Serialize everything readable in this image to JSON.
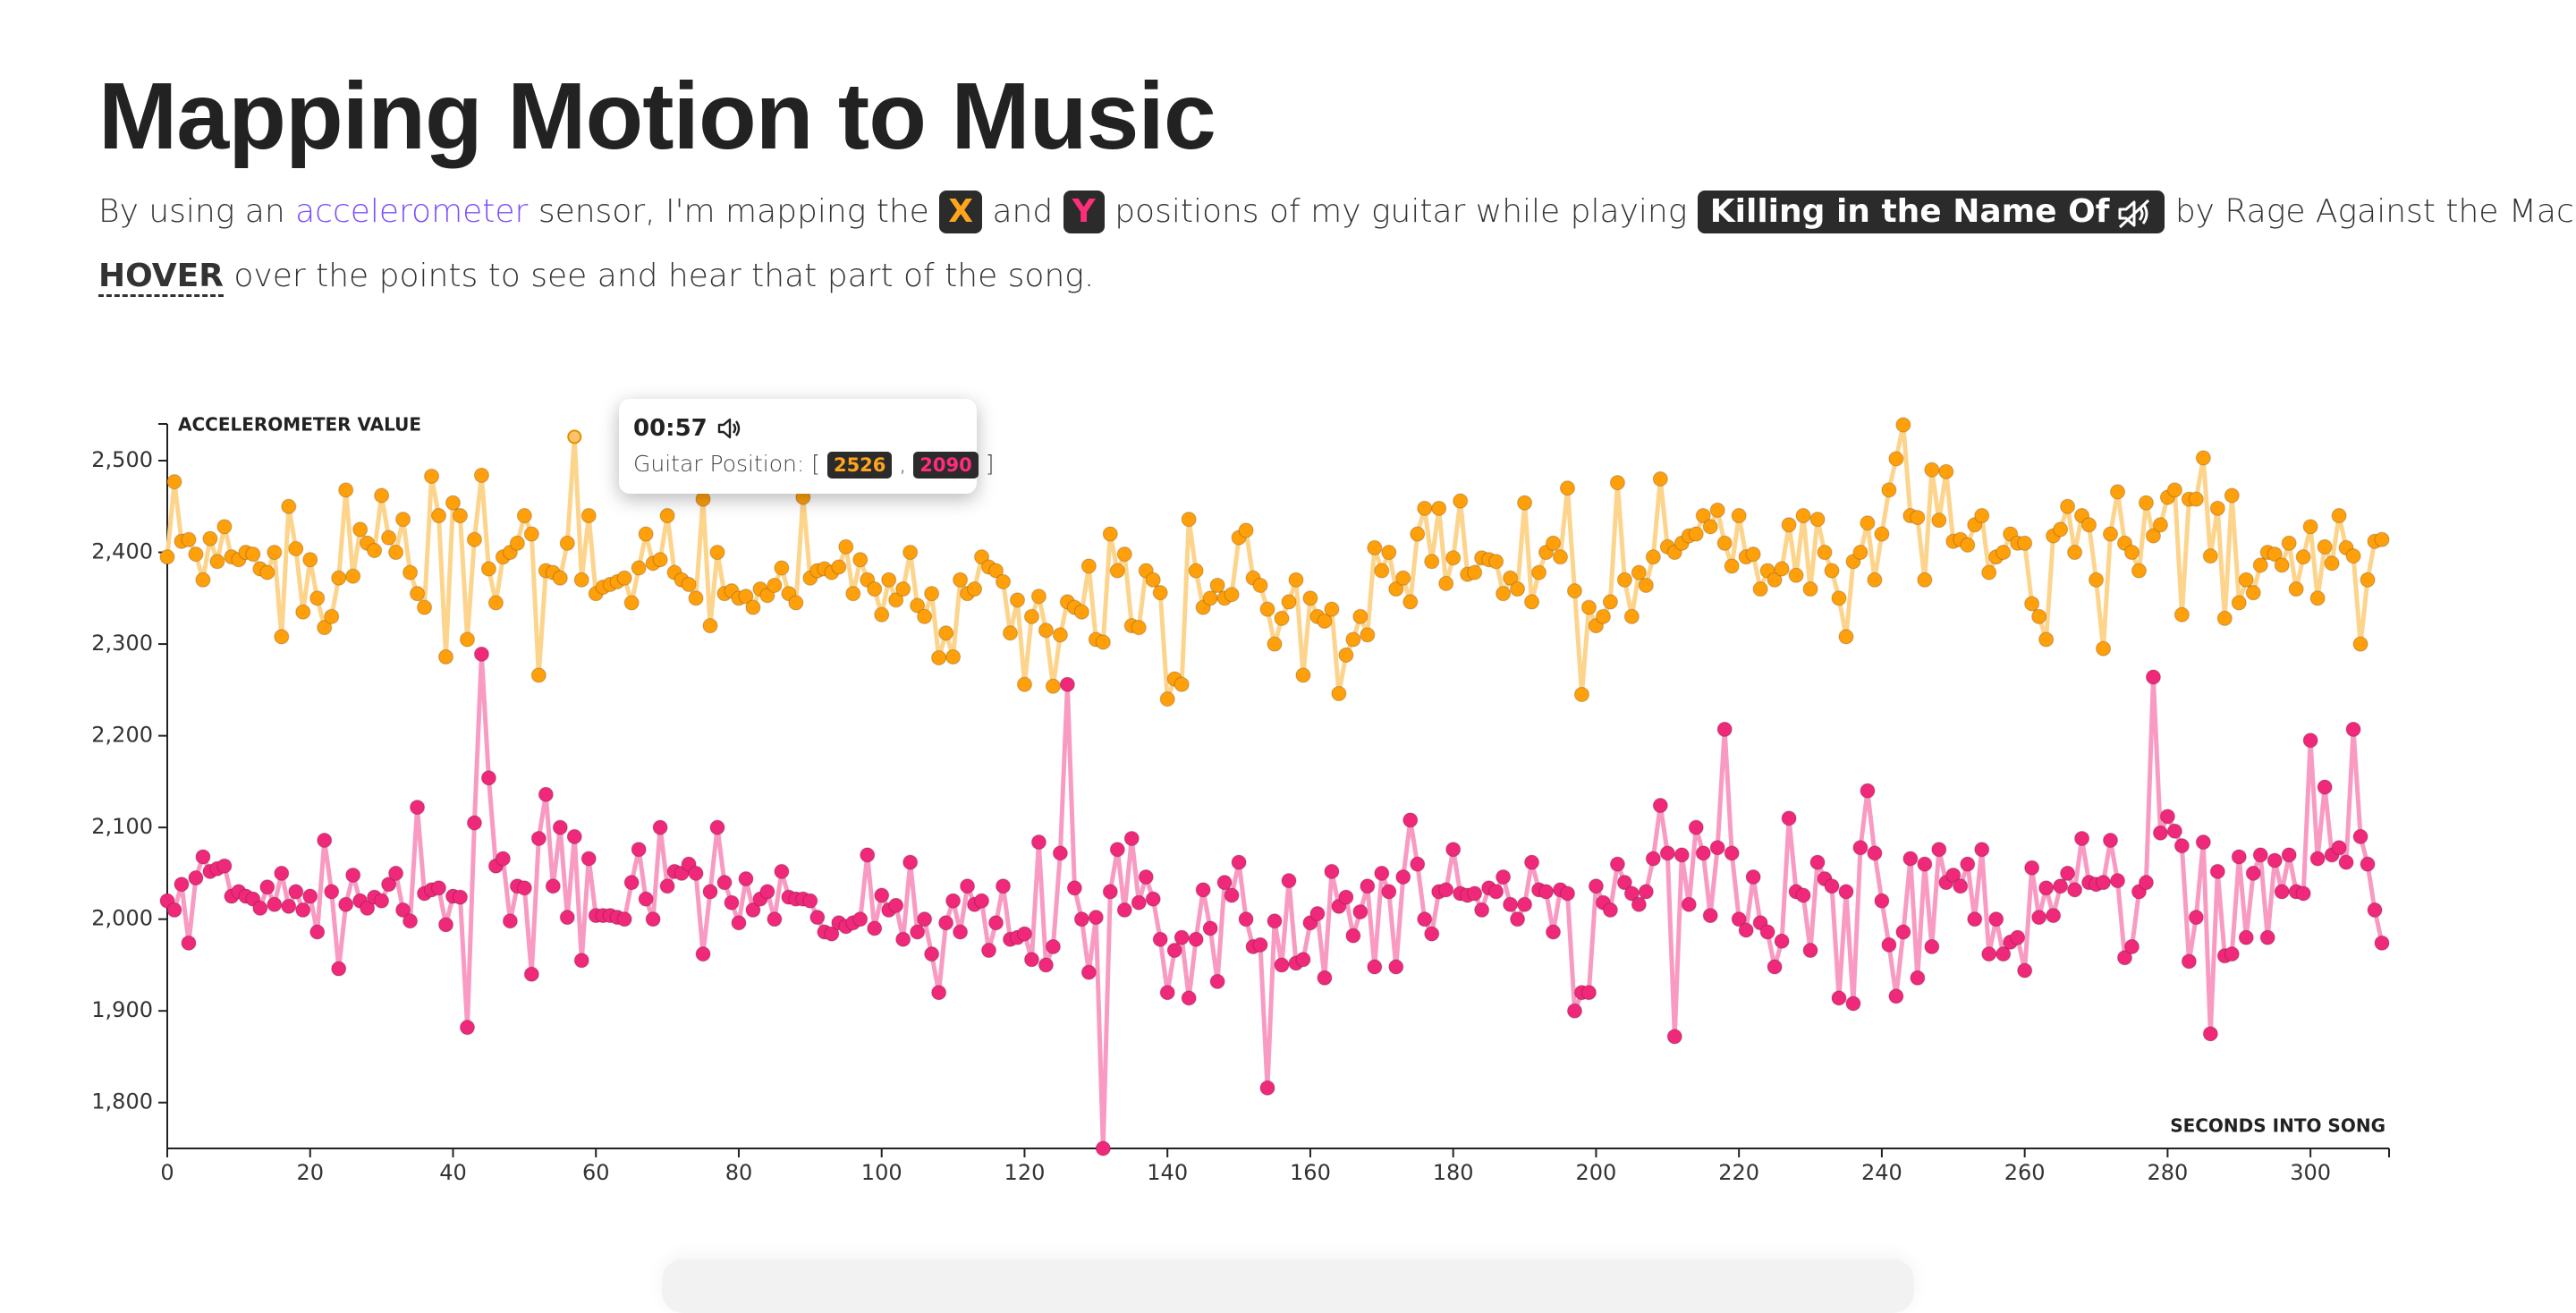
{
  "header": {
    "title": "Mapping Motion to Music",
    "intro": [
      "By using an",
      "accelerometer",
      "sensor, I'm mapping the",
      "and",
      "positions of my guitar while playing",
      "Killing in the Name Of",
      "by Rage Against the Machine."
    ],
    "hint": [
      "HOVER",
      "over the points to see and hear that part of the song."
    ]
  },
  "tooltip": {
    "time": "00:57",
    "label": "Guitar Position:",
    "open": "[",
    "sep": ",",
    "close": "]",
    "index": 57
  },
  "chart_data": {
    "type": "scatter-line",
    "y_label": "ACCELEROMETER VALUE",
    "x_label": "SECONDS INTO SONG",
    "xlim": [
      0,
      311
    ],
    "ylim": [
      1750,
      2540
    ],
    "xticks": [
      0,
      20,
      40,
      60,
      80,
      100,
      120,
      140,
      160,
      180,
      200,
      220,
      240,
      260,
      280,
      300
    ],
    "yticks": [
      {
        "value": 1800,
        "label": "1,800"
      },
      {
        "value": 1900,
        "label": "1,900"
      },
      {
        "value": 2000,
        "label": "2,000"
      },
      {
        "value": 2100,
        "label": "2,100"
      },
      {
        "value": 2200,
        "label": "2,200"
      },
      {
        "value": 2300,
        "label": "2,300"
      },
      {
        "value": 2400,
        "label": "2,400"
      },
      {
        "value": 2500,
        "label": "2,500"
      }
    ],
    "x": [
      0,
      1,
      2,
      3,
      4,
      5,
      6,
      7,
      8,
      9,
      10,
      11,
      12,
      13,
      14,
      15,
      16,
      17,
      18,
      19,
      20,
      21,
      22,
      23,
      24,
      25,
      26,
      27,
      28,
      29,
      30,
      31,
      32,
      33,
      34,
      35,
      36,
      37,
      38,
      39,
      40,
      41,
      42,
      43,
      44,
      45,
      46,
      47,
      48,
      49,
      50,
      51,
      52,
      53,
      54,
      55,
      56,
      57,
      58,
      59,
      60,
      61,
      62,
      63,
      64,
      65,
      66,
      67,
      68,
      69,
      70,
      71,
      72,
      73,
      74,
      75,
      76,
      77,
      78,
      79,
      80,
      81,
      82,
      83,
      84,
      85,
      86,
      87,
      88,
      89,
      90,
      91,
      92,
      93,
      94,
      95,
      96,
      97,
      98,
      99,
      100,
      101,
      102,
      103,
      104,
      105,
      106,
      107,
      108,
      109,
      110,
      111,
      112,
      113,
      114,
      115,
      116,
      117,
      118,
      119,
      120,
      121,
      122,
      123,
      124,
      125,
      126,
      127,
      128,
      129,
      130,
      131,
      132,
      133,
      134,
      135,
      136,
      137,
      138,
      139,
      140,
      141,
      142,
      143,
      144,
      145,
      146,
      147,
      148,
      149,
      150,
      151,
      152,
      153,
      154,
      155,
      156,
      157,
      158,
      159,
      160,
      161,
      162,
      163,
      164,
      165,
      166,
      167,
      168,
      169,
      170,
      171,
      172,
      173,
      174,
      175,
      176,
      177,
      178,
      179,
      180,
      181,
      182,
      183,
      184,
      185,
      186,
      187,
      188,
      189,
      190,
      191,
      192,
      193,
      194,
      195,
      196,
      197,
      198,
      199,
      200,
      201,
      202,
      203,
      204,
      205,
      206,
      207,
      208,
      209,
      210,
      211,
      212,
      213,
      214,
      215,
      216,
      217,
      218,
      219,
      220,
      221,
      222,
      223,
      224,
      225,
      226,
      227,
      228,
      229,
      230,
      231,
      232,
      233,
      234,
      235,
      236,
      237,
      238,
      239,
      240,
      241,
      242,
      243,
      244,
      245,
      246,
      247,
      248,
      249,
      250,
      251,
      252,
      253,
      254,
      255,
      256,
      257,
      258,
      259,
      260,
      261,
      262,
      263,
      264,
      265,
      266,
      267,
      268,
      269,
      270,
      271,
      272,
      273,
      274,
      275,
      276,
      277,
      278,
      279,
      280,
      281,
      282,
      283,
      284,
      285,
      286,
      287,
      288,
      289,
      290,
      291,
      292,
      293,
      294,
      295,
      296,
      297,
      298,
      299,
      300,
      301,
      302,
      303,
      304,
      305,
      306,
      307,
      308,
      309,
      310
    ],
    "series": [
      {
        "name": "X",
        "color": "#ff9f0a",
        "line_color": "#fdd48c",
        "values": [
          2395,
          2477,
          2412,
          2414,
          2398,
          2370,
          2415,
          2390,
          2428,
          2395,
          2392,
          2400,
          2398,
          2382,
          2378,
          2400,
          2308,
          2450,
          2404,
          2335,
          2392,
          2350,
          2318,
          2330,
          2372,
          2468,
          2374,
          2425,
          2410,
          2402,
          2462,
          2416,
          2400,
          2436,
          2378,
          2355,
          2340,
          2483,
          2440,
          2286,
          2454,
          2440,
          2305,
          2414,
          2484,
          2382,
          2345,
          2395,
          2400,
          2410,
          2440,
          2420,
          2266,
          2380,
          2378,
          2372,
          2410,
          2526,
          2370,
          2440,
          2355,
          2362,
          2365,
          2368,
          2372,
          2345,
          2383,
          2420,
          2388,
          2392,
          2440,
          2378,
          2370,
          2365,
          2350,
          2458,
          2320,
          2400,
          2355,
          2358,
          2350,
          2352,
          2340,
          2360,
          2353,
          2364,
          2383,
          2355,
          2345,
          2460,
          2372,
          2380,
          2382,
          2378,
          2384,
          2406,
          2355,
          2392,
          2370,
          2360,
          2332,
          2370,
          2348,
          2360,
          2400,
          2342,
          2330,
          2355,
          2285,
          2312,
          2286,
          2370,
          2355,
          2360,
          2395,
          2384,
          2380,
          2368,
          2312,
          2348,
          2256,
          2330,
          2352,
          2315,
          2254,
          2310,
          2346,
          2340,
          2335,
          2385,
          2305,
          2302,
          2420,
          2380,
          2398,
          2320,
          2318,
          2380,
          2370,
          2356,
          2240,
          2262,
          2256,
          2436,
          2380,
          2340,
          2350,
          2364,
          2350,
          2354,
          2416,
          2424,
          2372,
          2364,
          2338,
          2300,
          2328,
          2346,
          2370,
          2266,
          2350,
          2330,
          2325,
          2338,
          2246,
          2288,
          2305,
          2330,
          2310,
          2405,
          2380,
          2400,
          2360,
          2372,
          2346,
          2420,
          2448,
          2390,
          2448,
          2366,
          2394,
          2456,
          2376,
          2378,
          2394,
          2392,
          2390,
          2355,
          2372,
          2360,
          2454,
          2346,
          2378,
          2400,
          2410,
          2395,
          2470,
          2358,
          2245,
          2340,
          2320,
          2330,
          2346,
          2476,
          2370,
          2330,
          2378,
          2364,
          2395,
          2480,
          2406,
          2400,
          2410,
          2418,
          2420,
          2440,
          2428,
          2446,
          2410,
          2385,
          2440,
          2395,
          2398,
          2360,
          2380,
          2370,
          2382,
          2430,
          2375,
          2440,
          2360,
          2436,
          2400,
          2380,
          2350,
          2308,
          2390,
          2400,
          2432,
          2370,
          2420,
          2468,
          2502,
          2539,
          2440,
          2438,
          2370,
          2490,
          2435,
          2488,
          2412,
          2414,
          2408,
          2430,
          2440,
          2378,
          2395,
          2400,
          2420,
          2410,
          2410,
          2344,
          2330,
          2305,
          2418,
          2425,
          2450,
          2400,
          2440,
          2430,
          2370,
          2295,
          2420,
          2466,
          2410,
          2400,
          2380,
          2454,
          2418,
          2430,
          2460,
          2468,
          2332,
          2458,
          2458,
          2503,
          2396,
          2448,
          2328,
          2462,
          2345,
          2370,
          2356,
          2386,
          2400,
          2398,
          2386,
          2410,
          2360,
          2395,
          2428,
          2350,
          2406,
          2388,
          2440,
          2405,
          2396,
          2300,
          2370,
          2412,
          2414
        ]
      },
      {
        "name": "Y",
        "color": "#f0287a",
        "line_color": "#f99ac2",
        "values": [
          2020,
          2010,
          2038,
          1974,
          2045,
          2068,
          2052,
          2055,
          2058,
          2025,
          2030,
          2025,
          2022,
          2012,
          2035,
          2016,
          2050,
          2014,
          2030,
          2010,
          2025,
          1986,
          2086,
          2030,
          1946,
          2016,
          2048,
          2020,
          2012,
          2024,
          2020,
          2038,
          2050,
          2010,
          1998,
          2122,
          2028,
          2032,
          2034,
          1994,
          2025,
          2024,
          1882,
          2105,
          2289,
          2154,
          2058,
          2066,
          1998,
          2036,
          2034,
          1940,
          2088,
          2136,
          2036,
          2100,
          2002,
          2090,
          1955,
          2066,
          2004,
          2004,
          2004,
          2002,
          2000,
          2040,
          2076,
          2022,
          2000,
          2100,
          2036,
          2052,
          2050,
          2060,
          2050,
          1962,
          2030,
          2100,
          2040,
          2018,
          1996,
          2044,
          2010,
          2022,
          2030,
          2000,
          2052,
          2024,
          2022,
          2022,
          2020,
          2002,
          1986,
          1984,
          1996,
          1992,
          1996,
          2000,
          2070,
          1990,
          2026,
          2010,
          2015,
          1978,
          2062,
          1986,
          2000,
          1962,
          1920,
          1996,
          2020,
          1986,
          2036,
          2016,
          2020,
          1966,
          1996,
          2036,
          1978,
          1980,
          1984,
          1956,
          2084,
          1950,
          1970,
          2072,
          2256,
          2034,
          2000,
          1942,
          2002,
          1750,
          2030,
          2076,
          2010,
          2088,
          2018,
          2046,
          2022,
          1978,
          1920,
          1966,
          1980,
          1914,
          1978,
          2032,
          1990,
          1932,
          2040,
          2026,
          2062,
          2000,
          1970,
          1972,
          1816,
          1998,
          1950,
          2042,
          1952,
          1956,
          1996,
          2006,
          1936,
          2052,
          2014,
          2024,
          1982,
          2008,
          2036,
          1948,
          2050,
          2030,
          1948,
          2046,
          2108,
          2060,
          2000,
          1984,
          2030,
          2032,
          2076,
          2028,
          2026,
          2028,
          2010,
          2034,
          2030,
          2046,
          2016,
          2000,
          2016,
          2062,
          2032,
          2030,
          1986,
          2032,
          2028,
          1900,
          1920,
          1920,
          2036,
          2018,
          2010,
          2060,
          2040,
          2028,
          2016,
          2030,
          2066,
          2124,
          2072,
          1872,
          2070,
          2016,
          2100,
          2072,
          2004,
          2078,
          2207,
          2072,
          2000,
          1988,
          2046,
          1996,
          1986,
          1948,
          1976,
          2110,
          2030,
          2026,
          1966,
          2062,
          2044,
          2036,
          1914,
          2030,
          1908,
          2078,
          2140,
          2072,
          2020,
          1972,
          1916,
          1986,
          2066,
          1936,
          2060,
          1970,
          2076,
          2040,
          2048,
          2036,
          2060,
          2000,
          2076,
          1962,
          2000,
          1962,
          1975,
          1980,
          1944,
          2056,
          2002,
          2034,
          2004,
          2036,
          2050,
          2032,
          2088,
          2040,
          2038,
          2040,
          2086,
          2042,
          1958,
          1970,
          2030,
          2040,
          2264,
          2094,
          2112,
          2096,
          2080,
          1954,
          2002,
          2084,
          1875,
          2052,
          1960,
          1962,
          2068,
          1980,
          2050,
          2070,
          1980,
          2064,
          2030,
          2070,
          2030,
          2028,
          2195,
          2066,
          2144,
          2070,
          2078,
          2062,
          2207,
          2090,
          2060,
          2010,
          1974
        ]
      }
    ]
  }
}
